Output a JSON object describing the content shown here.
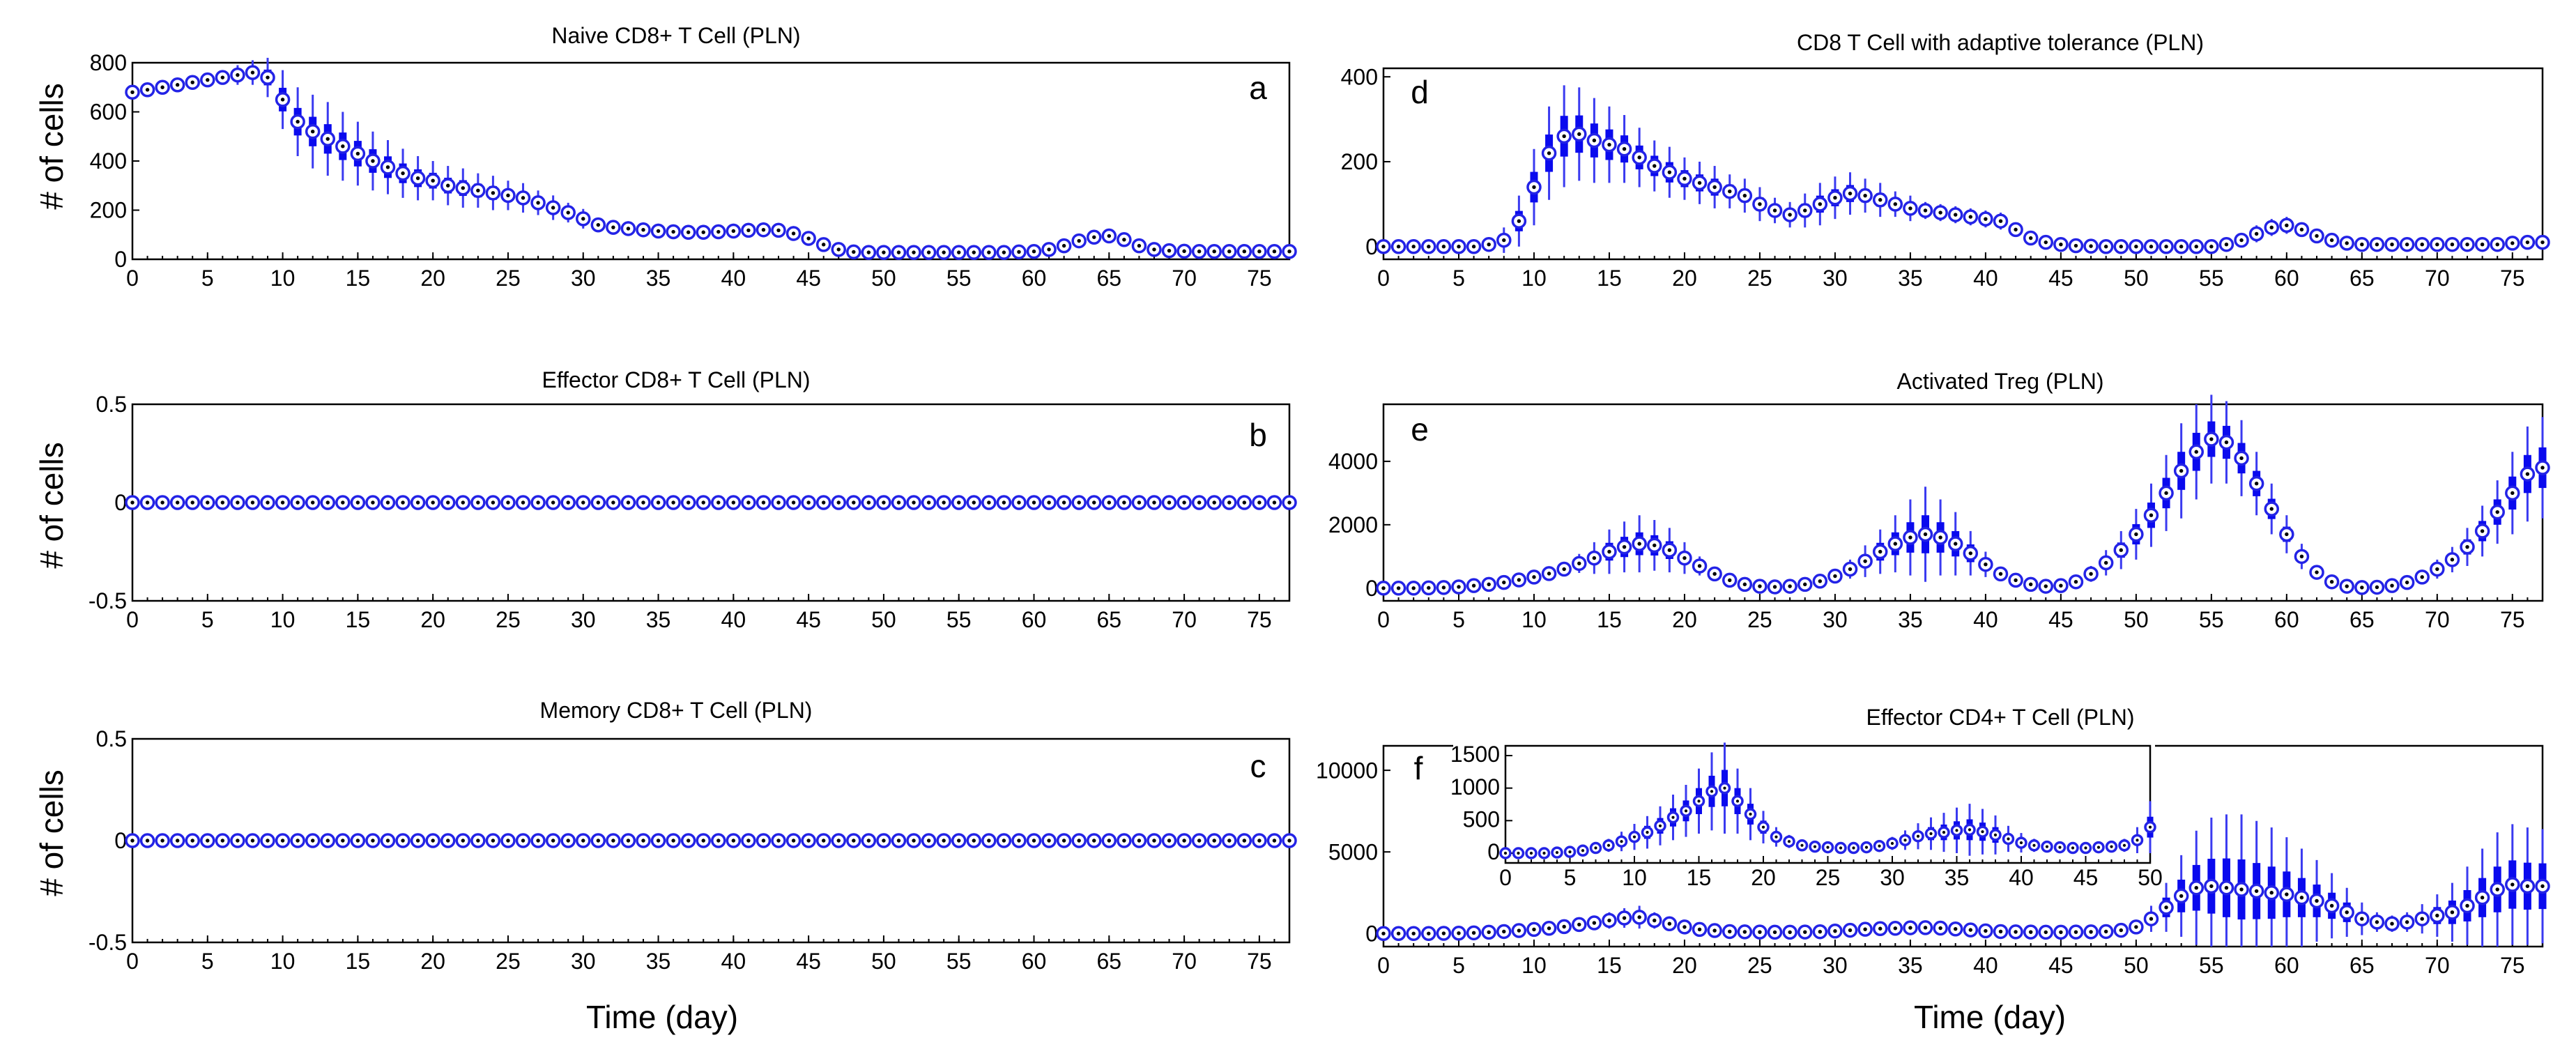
{
  "figure": {
    "background": "#ffffff",
    "marker_color": "#2323e6",
    "box_color": "#0a0aee",
    "whisker_color": "#3a3af0"
  },
  "common": {
    "ylabel": "# of cells",
    "xlabel": "Time (day)"
  },
  "chart_data": [
    {
      "id": "a",
      "type": "box",
      "title": "Naive CD8+ T Cell (PLN)",
      "panel_letter": "a",
      "xlim": [
        0,
        77
      ],
      "ylim": [
        0,
        800
      ],
      "xticks": [
        0,
        5,
        10,
        15,
        20,
        25,
        30,
        35,
        40,
        45,
        50,
        55,
        60,
        65,
        70,
        75
      ],
      "yticks": [
        0,
        200,
        400,
        600,
        800
      ],
      "show_ylabel": true,
      "show_xlabel": false,
      "x": [
        0,
        1,
        2,
        3,
        4,
        5,
        6,
        7,
        8,
        9,
        10,
        11,
        12,
        13,
        14,
        15,
        16,
        17,
        18,
        19,
        20,
        21,
        22,
        23,
        24,
        25,
        26,
        27,
        28,
        29,
        30,
        31,
        32,
        33,
        34,
        35,
        36,
        37,
        38,
        39,
        40,
        41,
        42,
        43,
        44,
        45,
        46,
        47,
        48,
        49,
        50,
        51,
        52,
        53,
        54,
        55,
        56,
        57,
        58,
        59,
        60,
        61,
        62,
        63,
        64,
        65,
        66,
        67,
        68,
        69,
        70,
        71,
        72,
        73,
        74,
        75,
        76,
        77
      ],
      "median": [
        680,
        690,
        700,
        710,
        720,
        730,
        740,
        750,
        760,
        740,
        650,
        560,
        520,
        490,
        460,
        430,
        400,
        375,
        350,
        330,
        320,
        300,
        290,
        280,
        270,
        260,
        250,
        230,
        210,
        190,
        165,
        140,
        130,
        125,
        120,
        115,
        112,
        110,
        110,
        112,
        115,
        118,
        120,
        118,
        105,
        85,
        60,
        40,
        30,
        28,
        28,
        28,
        28,
        28,
        28,
        28,
        28,
        28,
        28,
        30,
        32,
        40,
        55,
        75,
        90,
        95,
        80,
        55,
        40,
        35,
        33,
        32,
        32,
        32,
        32,
        32,
        32,
        32
      ],
      "spread": [
        10,
        10,
        10,
        10,
        10,
        10,
        20,
        40,
        50,
        80,
        120,
        140,
        150,
        150,
        140,
        130,
        120,
        110,
        100,
        90,
        80,
        80,
        80,
        70,
        70,
        60,
        60,
        50,
        50,
        40,
        40,
        30,
        30,
        30,
        30,
        30,
        30,
        30,
        30,
        30,
        30,
        30,
        30,
        30,
        30,
        30,
        20,
        10,
        5,
        5,
        5,
        5,
        5,
        5,
        5,
        5,
        5,
        5,
        5,
        5,
        5,
        10,
        15,
        20,
        20,
        20,
        20,
        15,
        10,
        5,
        5,
        5,
        5,
        5,
        5,
        5,
        5,
        5
      ]
    },
    {
      "id": "b",
      "type": "box",
      "title": "Effector CD8+ T Cell (PLN)",
      "panel_letter": "b",
      "xlim": [
        0,
        77
      ],
      "ylim": [
        -0.5,
        0.5
      ],
      "xticks": [
        0,
        5,
        10,
        15,
        20,
        25,
        30,
        35,
        40,
        45,
        50,
        55,
        60,
        65,
        70,
        75
      ],
      "yticks": [
        -0.5,
        0,
        0.5
      ],
      "show_ylabel": true,
      "show_xlabel": false,
      "constant_value": 0,
      "n_points": 78
    },
    {
      "id": "c",
      "type": "box",
      "title": "Memory CD8+ T Cell (PLN)",
      "panel_letter": "c",
      "xlim": [
        0,
        77
      ],
      "ylim": [
        -0.5,
        0.5
      ],
      "xticks": [
        0,
        5,
        10,
        15,
        20,
        25,
        30,
        35,
        40,
        45,
        50,
        55,
        60,
        65,
        70,
        75
      ],
      "yticks": [
        -0.5,
        0,
        0.5
      ],
      "show_ylabel": true,
      "show_xlabel": true,
      "constant_value": 0,
      "n_points": 78
    },
    {
      "id": "d",
      "type": "box",
      "title": "CD8 T Cell with adaptive tolerance (PLN)",
      "panel_letter": "d",
      "xlim": [
        0,
        77
      ],
      "ylim": [
        -30,
        420
      ],
      "xticks": [
        0,
        5,
        10,
        15,
        20,
        25,
        30,
        35,
        40,
        45,
        50,
        55,
        60,
        65,
        70,
        75
      ],
      "yticks": [
        0,
        200,
        400
      ],
      "show_ylabel": false,
      "show_xlabel": false,
      "x": [
        0,
        1,
        2,
        3,
        4,
        5,
        6,
        7,
        8,
        9,
        10,
        11,
        12,
        13,
        14,
        15,
        16,
        17,
        18,
        19,
        20,
        21,
        22,
        23,
        24,
        25,
        26,
        27,
        28,
        29,
        30,
        31,
        32,
        33,
        34,
        35,
        36,
        37,
        38,
        39,
        40,
        41,
        42,
        43,
        44,
        45,
        46,
        47,
        48,
        49,
        50,
        51,
        52,
        53,
        54,
        55,
        56,
        57,
        58,
        59,
        60,
        61,
        62,
        63,
        64,
        65,
        66,
        67,
        68,
        69,
        70,
        71,
        72,
        73,
        74,
        75,
        76,
        77
      ],
      "median": [
        0,
        0,
        0,
        0,
        0,
        0,
        0,
        5,
        15,
        60,
        140,
        220,
        260,
        265,
        250,
        240,
        230,
        210,
        190,
        175,
        160,
        150,
        140,
        130,
        120,
        100,
        85,
        75,
        85,
        100,
        115,
        125,
        120,
        110,
        100,
        90,
        85,
        80,
        75,
        70,
        65,
        60,
        40,
        20,
        10,
        5,
        2,
        1,
        0,
        0,
        0,
        0,
        0,
        0,
        0,
        0,
        5,
        15,
        30,
        45,
        50,
        40,
        25,
        15,
        8,
        5,
        5,
        5,
        5,
        5,
        5,
        5,
        5,
        5,
        5,
        8,
        10,
        10
      ],
      "spread": [
        2,
        2,
        2,
        2,
        2,
        2,
        5,
        10,
        30,
        60,
        90,
        110,
        120,
        110,
        100,
        90,
        80,
        70,
        60,
        60,
        50,
        50,
        50,
        40,
        40,
        40,
        30,
        30,
        40,
        50,
        50,
        50,
        40,
        40,
        30,
        30,
        20,
        20,
        20,
        20,
        20,
        20,
        15,
        10,
        5,
        5,
        2,
        2,
        2,
        2,
        2,
        2,
        2,
        2,
        2,
        5,
        10,
        15,
        20,
        20,
        20,
        15,
        10,
        10,
        5,
        5,
        10,
        10,
        10,
        10,
        10,
        10,
        10,
        10,
        10,
        10,
        10,
        10
      ]
    },
    {
      "id": "e",
      "type": "box",
      "title": "Activated Treg (PLN)",
      "panel_letter": "e",
      "xlim": [
        0,
        77
      ],
      "ylim": [
        -400,
        5800
      ],
      "xticks": [
        0,
        5,
        10,
        15,
        20,
        25,
        30,
        35,
        40,
        45,
        50,
        55,
        60,
        65,
        70,
        75
      ],
      "yticks": [
        0,
        2000,
        4000
      ],
      "show_ylabel": false,
      "show_xlabel": false,
      "x": [
        0,
        1,
        2,
        3,
        4,
        5,
        6,
        7,
        8,
        9,
        10,
        11,
        12,
        13,
        14,
        15,
        16,
        17,
        18,
        19,
        20,
        21,
        22,
        23,
        24,
        25,
        26,
        27,
        28,
        29,
        30,
        31,
        32,
        33,
        34,
        35,
        36,
        37,
        38,
        39,
        40,
        41,
        42,
        43,
        44,
        45,
        46,
        47,
        48,
        49,
        50,
        51,
        52,
        53,
        54,
        55,
        56,
        57,
        58,
        59,
        60,
        61,
        62,
        63,
        64,
        65,
        66,
        67,
        68,
        69,
        70,
        71,
        72,
        73,
        74,
        75,
        76,
        77
      ],
      "median": [
        0,
        0,
        0,
        10,
        20,
        40,
        80,
        120,
        180,
        260,
        350,
        460,
        600,
        780,
        950,
        1150,
        1300,
        1400,
        1350,
        1200,
        950,
        700,
        450,
        250,
        120,
        60,
        40,
        60,
        120,
        220,
        380,
        600,
        850,
        1150,
        1400,
        1600,
        1700,
        1600,
        1400,
        1100,
        750,
        450,
        250,
        120,
        60,
        80,
        200,
        450,
        800,
        1200,
        1700,
        2300,
        3000,
        3700,
        4300,
        4700,
        4600,
        4100,
        3300,
        2500,
        1700,
        1000,
        500,
        200,
        60,
        20,
        30,
        80,
        180,
        350,
        600,
        900,
        1300,
        1800,
        2400,
        3000,
        3600,
        3800
      ],
      "spread": [
        10,
        10,
        10,
        10,
        20,
        20,
        30,
        40,
        60,
        80,
        100,
        150,
        200,
        300,
        500,
        700,
        800,
        900,
        800,
        700,
        500,
        300,
        200,
        100,
        60,
        30,
        20,
        30,
        60,
        100,
        200,
        300,
        500,
        700,
        900,
        1200,
        1500,
        1200,
        1000,
        700,
        400,
        200,
        100,
        60,
        30,
        40,
        100,
        250,
        400,
        600,
        800,
        1000,
        1200,
        1500,
        1500,
        1400,
        1300,
        1200,
        1000,
        800,
        600,
        400,
        200,
        100,
        50,
        20,
        30,
        50,
        100,
        200,
        300,
        400,
        600,
        800,
        1000,
        1300,
        1500,
        1600
      ]
    },
    {
      "id": "f",
      "type": "box",
      "title": "Effector CD4+ T Cell (PLN)",
      "panel_letter": "f",
      "xlim": [
        0,
        77
      ],
      "ylim": [
        -800,
        11500
      ],
      "xticks": [
        0,
        5,
        10,
        15,
        20,
        25,
        30,
        35,
        40,
        45,
        50,
        55,
        60,
        65,
        70,
        75
      ],
      "yticks": [
        0,
        5000,
        10000
      ],
      "show_ylabel": false,
      "show_xlabel": true,
      "x": [
        0,
        1,
        2,
        3,
        4,
        5,
        6,
        7,
        8,
        9,
        10,
        11,
        12,
        13,
        14,
        15,
        16,
        17,
        18,
        19,
        20,
        21,
        22,
        23,
        24,
        25,
        26,
        27,
        28,
        29,
        30,
        31,
        32,
        33,
        34,
        35,
        36,
        37,
        38,
        39,
        40,
        41,
        42,
        43,
        44,
        45,
        46,
        47,
        48,
        49,
        50,
        51,
        52,
        53,
        54,
        55,
        56,
        57,
        58,
        59,
        60,
        61,
        62,
        63,
        64,
        65,
        66,
        67,
        68,
        69,
        70,
        71,
        72,
        73,
        74,
        75,
        76,
        77
      ],
      "median": [
        0,
        0,
        0,
        0,
        10,
        20,
        40,
        80,
        120,
        180,
        250,
        320,
        420,
        550,
        650,
        800,
        950,
        1000,
        800,
        600,
        400,
        250,
        180,
        120,
        100,
        90,
        80,
        80,
        90,
        110,
        150,
        200,
        260,
        300,
        320,
        350,
        360,
        330,
        280,
        220,
        160,
        120,
        100,
        90,
        80,
        80,
        90,
        100,
        120,
        200,
        400,
        900,
        1600,
        2300,
        2800,
        2900,
        2800,
        2700,
        2600,
        2500,
        2400,
        2200,
        2000,
        1700,
        1300,
        900,
        700,
        600,
        700,
        900,
        1100,
        1300,
        1700,
        2200,
        2700,
        3000,
        2900,
        2900
      ],
      "spread": [
        10,
        10,
        10,
        10,
        20,
        30,
        50,
        80,
        100,
        150,
        200,
        250,
        300,
        350,
        400,
        500,
        600,
        700,
        500,
        400,
        250,
        150,
        100,
        80,
        60,
        50,
        50,
        50,
        60,
        80,
        100,
        150,
        200,
        250,
        300,
        350,
        400,
        350,
        300,
        200,
        150,
        100,
        80,
        60,
        50,
        50,
        60,
        80,
        100,
        200,
        400,
        800,
        1500,
        2500,
        3500,
        4200,
        4500,
        4600,
        4300,
        4000,
        3500,
        3000,
        2500,
        2000,
        1500,
        1000,
        600,
        500,
        600,
        900,
        1300,
        1800,
        2400,
        3000,
        3500,
        3700,
        3600,
        3500
      ],
      "inset": {
        "xlim": [
          0,
          50
        ],
        "ylim": [
          -150,
          1650
        ],
        "xticks": [
          0,
          5,
          10,
          15,
          20,
          25,
          30,
          35,
          40,
          45,
          50
        ],
        "yticks": [
          0,
          500,
          1000,
          1500
        ]
      }
    }
  ]
}
